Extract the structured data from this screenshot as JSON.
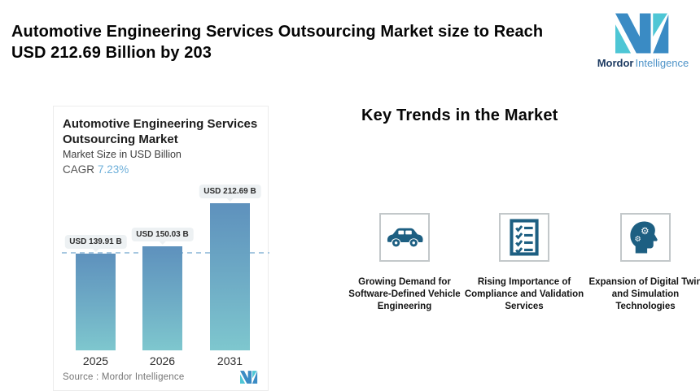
{
  "header": {
    "title_lines": [
      "Automotive Engineering Services Outsourcing Market size to Reach",
      "USD 212.69 Billion by 203"
    ]
  },
  "logo": {
    "brand_bold": "Mordor",
    "brand_light": "Intelligence"
  },
  "chart_card": {
    "title": "Automotive Engineering Services Outsourcing Market",
    "subtitle": "Market Size in USD Billion",
    "cagr_label": "CAGR",
    "cagr_value": "7.23%",
    "source": "Source :  Mordor Intelligence"
  },
  "chart_data": {
    "type": "bar",
    "title": "Automotive Engineering Services Outsourcing Market",
    "subtitle": "Market Size in USD Billion",
    "cagr": "7.23%",
    "categories": [
      "2025",
      "2026",
      "2031"
    ],
    "values": [
      139.91,
      150.03,
      212.69
    ],
    "value_labels": [
      "USD 139.91 B",
      "USD 150.03 B",
      "USD 212.69 B"
    ],
    "unit": "USD Billion",
    "ylim": [
      0,
      255
    ],
    "grid": false,
    "dashed_reference_line_at": 139.91,
    "source": "Source :  Mordor Intelligence"
  },
  "trends": {
    "heading": "Key Trends in the Market",
    "items": [
      {
        "icon": "car-icon",
        "label": "Growing Demand for Software-Defined Vehicle Engineering"
      },
      {
        "icon": "checklist-icon",
        "label": "Rising Importance of Compliance and Validation Services"
      },
      {
        "icon": "head-gears-icon",
        "label": "Expansion of Digital Twin and Simulation Technologies"
      }
    ]
  },
  "colors": {
    "brand_blue": "#3a8bc4",
    "brand_teal": "#4ec6d5",
    "bar_gradient_top": "#5e91bd",
    "bar_gradient_bottom": "#7ec7ce",
    "dashed_line": "#a6c7e0",
    "cagr_value": "#6fb0da",
    "icon_ink": "#1d5f82",
    "badge_bg": "#edf1f3"
  }
}
